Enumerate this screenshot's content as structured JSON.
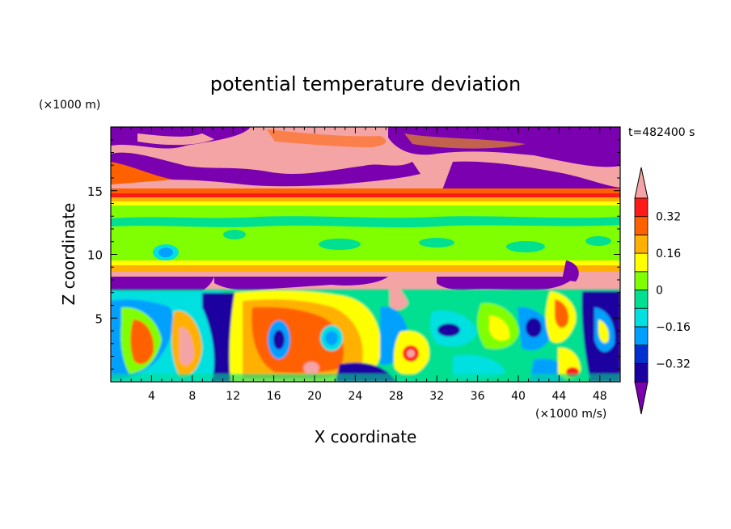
{
  "chart_data": {
    "type": "heatmap",
    "title": "potential temperature deviation",
    "xlabel": "X coordinate",
    "ylabel": "Z coordinate",
    "x_unit": "(×1000 m/s)",
    "y_unit": "(×1000 m)",
    "time_label": "t=482400 s",
    "x_range": [
      0,
      50
    ],
    "y_range": [
      0,
      20
    ],
    "x_ticks": [
      "4",
      "8",
      "12",
      "16",
      "20",
      "24",
      "28",
      "32",
      "36",
      "40",
      "44",
      "48"
    ],
    "y_ticks": [
      "5",
      "10",
      "15"
    ],
    "colorbar": {
      "tick_labels": [
        "0.32",
        "0.16",
        "0",
        "−0.16",
        "−0.32"
      ],
      "levels": [
        -0.4,
        -0.32,
        -0.24,
        -0.16,
        -0.08,
        0.0,
        0.08,
        0.16,
        0.24,
        0.32,
        0.4
      ],
      "colors": [
        "#7a00b0",
        "#1a00a0",
        "#0030d0",
        "#00a0ff",
        "#00e0e0",
        "#00e090",
        "#80ff00",
        "#ffff00",
        "#ffb000",
        "#ff6000",
        "#ff1a1a",
        "#f4a4a4"
      ],
      "extend": "both"
    },
    "bands": [
      {
        "z_range": [
          18.5,
          20
        ],
        "value_class": "mixed purple / pink / orange"
      },
      {
        "z_range": [
          15,
          18.5
        ],
        "value_class": "> 0.40 with strong negative patches"
      },
      {
        "z_range": [
          14,
          15
        ],
        "value_class": "0.24 – 0.40"
      },
      {
        "z_range": [
          9,
          14
        ],
        "value_class": "0 – 0.08"
      },
      {
        "z_range": [
          8,
          9
        ],
        "value_class": "0.16 – 0.40"
      },
      {
        "z_range": [
          7,
          8
        ],
        "value_class": "< −0.40 and > 0.40"
      },
      {
        "z_range": [
          0,
          7
        ],
        "value_class": "turbulent −0.40 – 0.40"
      }
    ]
  }
}
